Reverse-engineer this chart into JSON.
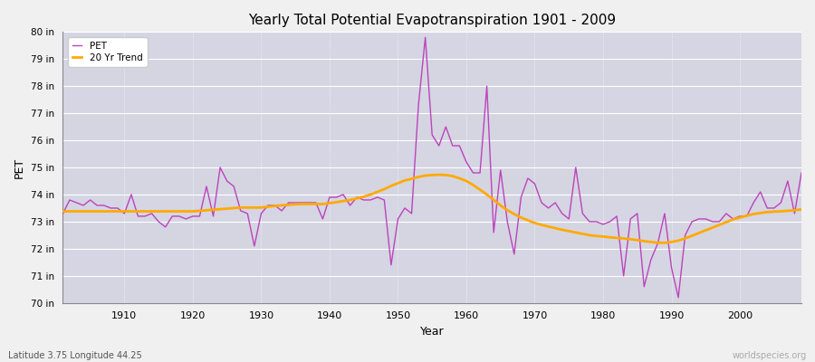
{
  "title": "Yearly Total Potential Evapotranspiration 1901 - 2009",
  "xlabel": "Year",
  "ylabel": "PET",
  "subtitle": "Latitude 3.75 Longitude 44.25",
  "watermark": "worldspecies.org",
  "pet_color": "#bb44bb",
  "trend_color": "#ffaa00",
  "fig_bg_color": "#f0f0f0",
  "plot_bg_color": "#dcdce8",
  "ylim": [
    70,
    80
  ],
  "yticks": [
    70,
    71,
    72,
    73,
    74,
    75,
    76,
    77,
    78,
    79,
    80
  ],
  "xlim": [
    1901,
    2009
  ],
  "xticks": [
    1910,
    1920,
    1930,
    1940,
    1950,
    1960,
    1970,
    1980,
    1990,
    2000
  ],
  "years": [
    1901,
    1902,
    1903,
    1904,
    1905,
    1906,
    1907,
    1908,
    1909,
    1910,
    1911,
    1912,
    1913,
    1914,
    1915,
    1916,
    1917,
    1918,
    1919,
    1920,
    1921,
    1922,
    1923,
    1924,
    1925,
    1926,
    1927,
    1928,
    1929,
    1930,
    1931,
    1932,
    1933,
    1934,
    1935,
    1936,
    1937,
    1938,
    1939,
    1940,
    1941,
    1942,
    1943,
    1944,
    1945,
    1946,
    1947,
    1948,
    1949,
    1950,
    1951,
    1952,
    1953,
    1954,
    1955,
    1956,
    1957,
    1958,
    1959,
    1960,
    1961,
    1962,
    1963,
    1964,
    1965,
    1966,
    1967,
    1968,
    1969,
    1970,
    1971,
    1972,
    1973,
    1974,
    1975,
    1976,
    1977,
    1978,
    1979,
    1980,
    1981,
    1982,
    1983,
    1984,
    1985,
    1986,
    1987,
    1988,
    1989,
    1990,
    1991,
    1992,
    1993,
    1994,
    1995,
    1996,
    1997,
    1998,
    1999,
    2000,
    2001,
    2002,
    2003,
    2004,
    2005,
    2006,
    2007,
    2008,
    2009
  ],
  "pet_values": [
    73.3,
    73.8,
    73.7,
    73.6,
    73.8,
    73.6,
    73.6,
    73.5,
    73.5,
    73.3,
    74.0,
    73.2,
    73.2,
    73.3,
    73.0,
    72.8,
    73.2,
    73.2,
    73.1,
    73.2,
    73.2,
    74.3,
    73.2,
    75.0,
    74.5,
    74.3,
    73.4,
    73.3,
    72.1,
    73.3,
    73.6,
    73.6,
    73.4,
    73.7,
    73.7,
    73.7,
    73.7,
    73.7,
    73.1,
    73.9,
    73.9,
    74.0,
    73.6,
    73.9,
    73.8,
    73.8,
    73.9,
    73.8,
    71.4,
    73.1,
    73.5,
    73.3,
    77.3,
    79.8,
    76.2,
    75.8,
    76.5,
    75.8,
    75.8,
    75.2,
    74.8,
    74.8,
    78.0,
    72.6,
    74.9,
    73.0,
    71.8,
    73.9,
    74.6,
    74.4,
    73.7,
    73.5,
    73.7,
    73.3,
    73.1,
    75.0,
    73.3,
    73.0,
    73.0,
    72.9,
    73.0,
    73.2,
    71.0,
    73.1,
    73.3,
    70.6,
    71.6,
    72.2,
    73.3,
    71.3,
    70.2,
    72.5,
    73.0,
    73.1,
    73.1,
    73.0,
    73.0,
    73.3,
    73.1,
    73.2,
    73.2,
    73.7,
    74.1,
    73.5,
    73.5,
    73.7,
    74.5,
    73.3,
    74.8
  ],
  "trend_values": [
    73.38,
    73.38,
    73.38,
    73.38,
    73.38,
    73.38,
    73.38,
    73.38,
    73.38,
    73.38,
    73.38,
    73.38,
    73.38,
    73.38,
    73.38,
    73.38,
    73.38,
    73.38,
    73.38,
    73.38,
    73.4,
    73.42,
    73.44,
    73.46,
    73.48,
    73.5,
    73.52,
    73.52,
    73.52,
    73.52,
    73.55,
    73.58,
    73.6,
    73.62,
    73.64,
    73.65,
    73.65,
    73.65,
    73.65,
    73.68,
    73.72,
    73.76,
    73.8,
    73.86,
    73.92,
    74.0,
    74.1,
    74.2,
    74.32,
    74.42,
    74.52,
    74.58,
    74.65,
    74.7,
    74.72,
    74.73,
    74.72,
    74.68,
    74.6,
    74.5,
    74.35,
    74.18,
    74.0,
    73.8,
    73.6,
    73.42,
    73.28,
    73.15,
    73.05,
    72.95,
    72.88,
    72.82,
    72.76,
    72.7,
    72.65,
    72.6,
    72.55,
    72.5,
    72.47,
    72.45,
    72.42,
    72.4,
    72.38,
    72.35,
    72.32,
    72.28,
    72.25,
    72.22,
    72.22,
    72.25,
    72.3,
    72.38,
    72.48,
    72.58,
    72.68,
    72.78,
    72.88,
    72.98,
    73.08,
    73.15,
    73.22,
    73.28,
    73.32,
    73.35,
    73.37,
    73.38,
    73.4,
    73.42,
    73.45
  ]
}
